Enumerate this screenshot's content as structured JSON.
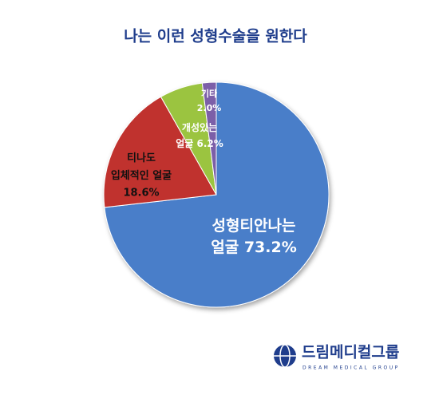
{
  "chart_data": {
    "type": "pie",
    "title": "나는 이런 성형수술을 원한다",
    "categories": [
      [
        "성형티안나는",
        "얼굴"
      ],
      [
        "티나도",
        "입체적인 얼굴"
      ],
      [
        "개성있는",
        "얼굴"
      ],
      [
        "기타"
      ]
    ],
    "values": [
      73.2,
      18.6,
      6.2,
      2.0
    ],
    "value_labels": [
      "73.2%",
      "18.6%",
      "6.2%",
      "2.0%"
    ],
    "colors": [
      "#4a7ec9",
      "#c0302e",
      "#9bc43f",
      "#7b5ea8"
    ]
  },
  "logo": {
    "name": "드림메디컬그룹",
    "tagline": "DREAM MEDICAL GROUP"
  }
}
